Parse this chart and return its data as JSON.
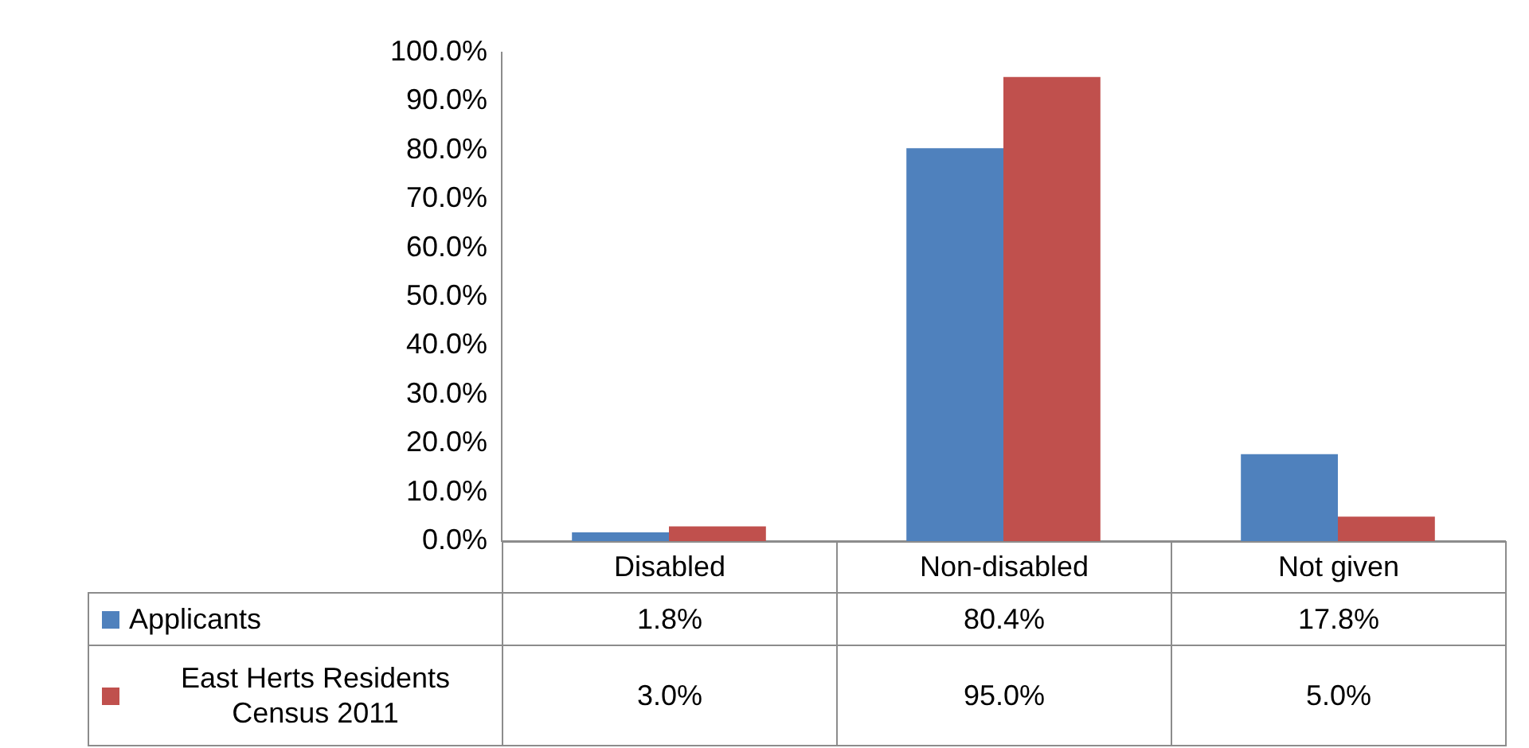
{
  "chart_data": {
    "type": "bar",
    "categories": [
      "Disabled",
      "Non-disabled",
      "Not given"
    ],
    "series": [
      {
        "name": "Applicants",
        "color": "#4f81bd",
        "values": [
          1.8,
          80.4,
          17.8
        ],
        "value_labels": [
          "1.8%",
          "80.4%",
          "17.8%"
        ]
      },
      {
        "name": "East Herts Residents Census 2011",
        "color": "#c0504d",
        "values": [
          3.0,
          95.0,
          5.0
        ],
        "value_labels": [
          "3.0%",
          "95.0%",
          "5.0%"
        ]
      }
    ],
    "ylim": [
      0,
      100
    ],
    "yticks": [
      {
        "value": 0,
        "label": "0.0%"
      },
      {
        "value": 10,
        "label": "10.0%"
      },
      {
        "value": 20,
        "label": "20.0%"
      },
      {
        "value": 30,
        "label": "30.0%"
      },
      {
        "value": 40,
        "label": "40.0%"
      },
      {
        "value": 50,
        "label": "50.0%"
      },
      {
        "value": 60,
        "label": "60.0%"
      },
      {
        "value": 70,
        "label": "70.0%"
      },
      {
        "value": 80,
        "label": "80.0%"
      },
      {
        "value": 90,
        "label": "90.0%"
      },
      {
        "value": 100,
        "label": "100.0%"
      }
    ],
    "grid": false,
    "legend": "left"
  }
}
